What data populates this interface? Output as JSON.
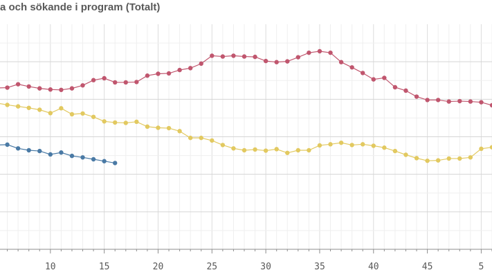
{
  "chart_data": {
    "type": "line",
    "title": "a och sökande i program (Totalt)",
    "xlabel": "",
    "ylabel": "",
    "x_ticks": [
      10,
      15,
      20,
      25,
      30,
      35,
      40,
      45,
      5
    ],
    "xlim": [
      5,
      51
    ],
    "ylim": [
      0,
      6
    ],
    "grid": true,
    "series": [
      {
        "color": "#c0566e",
        "x": [
          5,
          6,
          7,
          8,
          9,
          10,
          11,
          12,
          13,
          14,
          15,
          16,
          17,
          18,
          19,
          20,
          21,
          22,
          23,
          24,
          25,
          26,
          27,
          28,
          29,
          30,
          31,
          32,
          33,
          34,
          35,
          36,
          37,
          38,
          39,
          40,
          41,
          42,
          43,
          44,
          45,
          46,
          47,
          48,
          49,
          50,
          51
        ],
        "values": [
          4.3,
          4.31,
          4.4,
          4.34,
          4.29,
          4.26,
          4.25,
          4.29,
          4.37,
          4.51,
          4.56,
          4.45,
          4.45,
          4.46,
          4.63,
          4.68,
          4.69,
          4.78,
          4.83,
          4.95,
          5.16,
          5.14,
          5.16,
          5.14,
          5.13,
          5.02,
          4.99,
          5.01,
          5.12,
          5.24,
          5.28,
          5.24,
          4.99,
          4.85,
          4.7,
          4.53,
          4.57,
          4.32,
          4.23,
          4.07,
          3.98,
          3.98,
          3.94,
          3.95,
          3.94,
          3.92,
          3.84
        ]
      },
      {
        "color": "#e2c960",
        "x": [
          5,
          6,
          7,
          8,
          9,
          10,
          11,
          12,
          13,
          14,
          15,
          16,
          17,
          18,
          19,
          20,
          21,
          22,
          23,
          24,
          25,
          26,
          27,
          28,
          29,
          30,
          31,
          32,
          33,
          34,
          35,
          36,
          37,
          38,
          39,
          40,
          41,
          42,
          43,
          44,
          45,
          46,
          47,
          48,
          49,
          50,
          51
        ],
        "values": [
          3.9,
          3.85,
          3.81,
          3.77,
          3.72,
          3.63,
          3.76,
          3.6,
          3.62,
          3.53,
          3.41,
          3.38,
          3.37,
          3.4,
          3.27,
          3.24,
          3.23,
          3.15,
          2.97,
          2.97,
          2.9,
          2.78,
          2.69,
          2.64,
          2.66,
          2.63,
          2.67,
          2.57,
          2.64,
          2.64,
          2.77,
          2.8,
          2.84,
          2.78,
          2.8,
          2.76,
          2.71,
          2.62,
          2.52,
          2.43,
          2.36,
          2.37,
          2.42,
          2.42,
          2.45,
          2.68,
          2.72
        ]
      },
      {
        "color": "#4a7aa5",
        "x": [
          5,
          6,
          7,
          8,
          9,
          10,
          11,
          12,
          13,
          14,
          15,
          16
        ],
        "values": [
          2.78,
          2.79,
          2.69,
          2.64,
          2.62,
          2.53,
          2.58,
          2.49,
          2.45,
          2.4,
          2.35,
          2.3
        ]
      }
    ]
  }
}
